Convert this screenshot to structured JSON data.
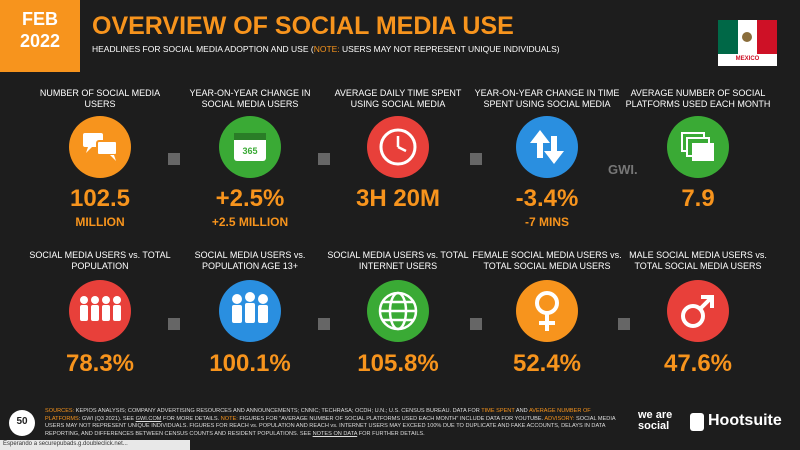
{
  "header": {
    "month": "FEB",
    "year": "2022",
    "title": "OVERVIEW OF SOCIAL MEDIA USE",
    "subtitle": [
      "HEADLINES FOR SOCIAL MEDIA ADOPTION AND USE (",
      "NOTE:",
      " USERS MAY NOT REPRESENT UNIQUE INDIVIDUALS)"
    ],
    "country": "MEXICO"
  },
  "tiles": [
    {
      "label": "NUMBER OF SOCIAL MEDIA USERS",
      "value": "102.5",
      "sub": "MILLION"
    },
    {
      "label": "YEAR-ON-YEAR CHANGE IN SOCIAL MEDIA USERS",
      "value": "+2.5%",
      "sub": "+2.5 MILLION",
      "icon_text": "365"
    },
    {
      "label": "AVERAGE DAILY TIME SPENT USING SOCIAL MEDIA",
      "value": "3H 20M"
    },
    {
      "label": "YEAR-ON-YEAR CHANGE IN TIME SPENT USING SOCIAL MEDIA",
      "value": "-3.4%",
      "sub": "-7 MINS"
    },
    {
      "label": "AVERAGE NUMBER OF SOCIAL PLATFORMS USED EACH MONTH",
      "value": "7.9"
    },
    {
      "label": "SOCIAL MEDIA USERS vs. TOTAL POPULATION",
      "value": "78.3%"
    },
    {
      "label": "SOCIAL MEDIA USERS vs. POPULATION AGE 13+",
      "value": "100.1%"
    },
    {
      "label": "SOCIAL MEDIA USERS vs. TOTAL INTERNET USERS",
      "value": "105.8%"
    },
    {
      "label": "FEMALE SOCIAL MEDIA USERS vs. TOTAL SOCIAL MEDIA USERS",
      "value": "52.4%"
    },
    {
      "label": "MALE SOCIAL MEDIA USERS vs. TOTAL SOCIAL MEDIA USERS",
      "value": "47.6%"
    }
  ],
  "source_logo": "GWI.",
  "footer": {
    "page": "50",
    "segments": [
      "SOURCES:",
      " KEPIOS ANALYSIS; COMPANY ADVERTISING RESOURCES AND ANNOUNCEMENTS; CNNIC; TECHRASA; OCDH; U.N.; U.S. CENSUS BUREAU. DATA FOR ",
      "TIME SPENT",
      " AND ",
      "AVERAGE NUMBER OF PLATFORMS",
      ": GWI (Q3 2021). SEE ",
      "GWI.COM",
      " FOR MORE DETAILS. ",
      "NOTE:",
      " FIGURES FOR \"AVERAGE NUMBER OF SOCIAL PLATFORMS USED EACH MONTH\" INCLUDE DATA FOR YOUTUBE. ",
      "ADVISORY:",
      " SOCIAL MEDIA USERS MAY NOT REPRESENT UNIQUE INDIVIDUALS. FIGURES FOR REACH vs. POPULATION AND REACH vs. INTERNET USERS MAY EXCEED 100% DUE TO DUPLICATE AND FAKE ACCOUNTS, DELAYS IN DATA REPORTING, AND DIFFERENCES BETWEEN CENSUS COUNTS AND RESIDENT POPULATIONS. SEE ",
      "NOTES ON DATA",
      " FOR FURTHER DETAILS."
    ],
    "logo_1": "we are social",
    "logo_2": "Hootsuite"
  },
  "status_bar": "Esperando a securepubads.g.doubleclick.net..."
}
